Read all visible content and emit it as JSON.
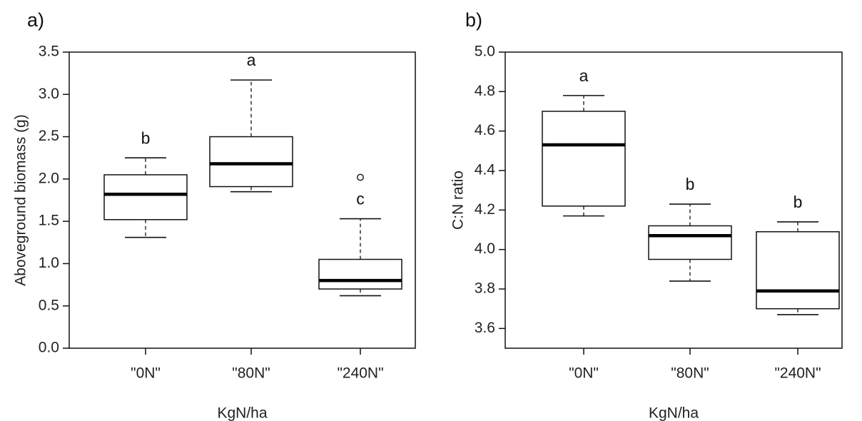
{
  "chart_data": [
    {
      "type": "box",
      "panel_label": "a)",
      "xlabel": "KgN/ha",
      "ylabel": "Aboveground biomass (g)",
      "ylim": [
        0,
        3.5
      ],
      "yticks": [
        "0.0",
        "0.5",
        "1.0",
        "1.5",
        "2.0",
        "2.5",
        "3.0",
        "3.5"
      ],
      "categories": [
        "\"0N\"",
        "\"80N\"",
        "\"240N\""
      ],
      "boxes": [
        {
          "min": 1.31,
          "q1": 1.52,
          "median": 1.82,
          "q3": 2.05,
          "max": 2.25,
          "outliers": [],
          "letter": "b"
        },
        {
          "min": 1.85,
          "q1": 1.91,
          "median": 2.18,
          "q3": 2.5,
          "max": 3.17,
          "outliers": [],
          "letter": "a"
        },
        {
          "min": 0.62,
          "q1": 0.7,
          "median": 0.8,
          "q3": 1.05,
          "max": 1.53,
          "outliers": [
            2.02
          ],
          "letter": "c"
        }
      ]
    },
    {
      "type": "box",
      "panel_label": "b)",
      "xlabel": "KgN/ha",
      "ylabel": "C:N ratio",
      "ylim": [
        3.5,
        5.0
      ],
      "yticks": [
        "3.6",
        "3.8",
        "4.0",
        "4.2",
        "4.4",
        "4.6",
        "4.8",
        "5.0"
      ],
      "categories": [
        "\"0N\"",
        "\"80N\"",
        "\"240N\""
      ],
      "boxes": [
        {
          "min": 4.17,
          "q1": 4.22,
          "median": 4.53,
          "q3": 4.7,
          "max": 4.78,
          "outliers": [],
          "letter": "a"
        },
        {
          "min": 3.84,
          "q1": 3.95,
          "median": 4.07,
          "q3": 4.12,
          "max": 4.23,
          "outliers": [],
          "letter": "b"
        },
        {
          "min": 3.67,
          "q1": 3.7,
          "median": 3.79,
          "q3": 4.09,
          "max": 4.14,
          "outliers": [],
          "letter": "b"
        }
      ]
    }
  ]
}
